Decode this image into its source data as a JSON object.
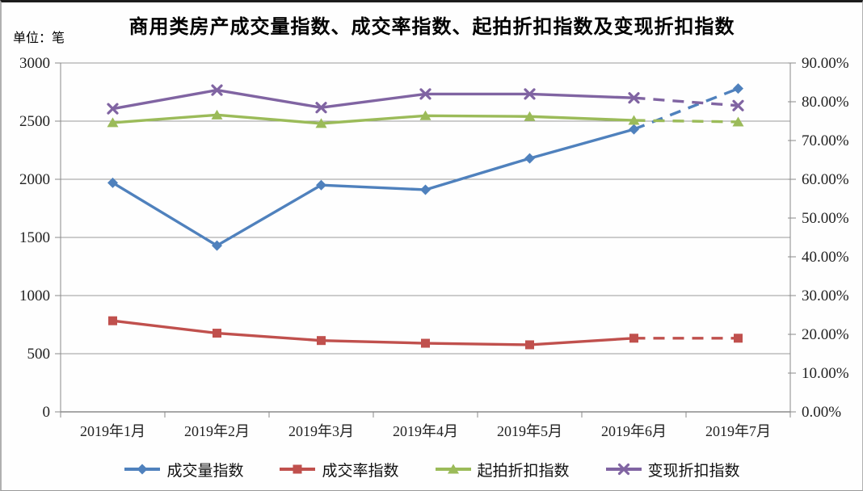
{
  "chart_data": {
    "type": "line",
    "title": "商用类房产成交量指数、成交率指数、起拍折扣指数及变现折扣指数",
    "unit_label": "单位：笔",
    "categories": [
      "2019年1月",
      "2019年2月",
      "2019年3月",
      "2019年4月",
      "2019年5月",
      "2019年6月",
      "2019年7月"
    ],
    "grid": "horizontal",
    "legend_position": "bottom",
    "left_axis": {
      "min": 0,
      "max": 3000,
      "tick_step": 500,
      "tick_labels": [
        "3000",
        "2500",
        "2000",
        "1500",
        "1000",
        "500",
        "0"
      ]
    },
    "right_axis": {
      "min": 0,
      "max": 90,
      "tick_step": 10,
      "tick_labels": [
        "90.00%",
        "80.00%",
        "70.00%",
        "60.00%",
        "50.00%",
        "40.00%",
        "30.00%",
        "20.00%",
        "10.00%",
        "0.00%"
      ]
    },
    "series": [
      {
        "name": "成交量指数",
        "axis": "left",
        "marker": "diamond",
        "color": "#4F81BD",
        "values": [
          1970,
          1430,
          1950,
          1910,
          2180,
          2430,
          2780
        ],
        "last_segment_dashed": true
      },
      {
        "name": "成交率指数",
        "axis": "right",
        "marker": "square",
        "color": "#C0504D",
        "values": [
          23.5,
          20.3,
          18.4,
          17.7,
          17.3,
          19.0,
          19.0
        ],
        "last_segment_dashed": true
      },
      {
        "name": "起拍折扣指数",
        "axis": "right",
        "marker": "triangle",
        "color": "#9BBB59",
        "values": [
          74.6,
          76.6,
          74.4,
          76.4,
          76.2,
          75.2,
          74.8
        ],
        "last_segment_dashed": true
      },
      {
        "name": "变现折扣指数",
        "axis": "right",
        "marker": "x",
        "color": "#8064A2",
        "values": [
          78.2,
          83.0,
          78.5,
          82.0,
          82.0,
          81.0,
          79.0
        ],
        "last_segment_dashed": true
      }
    ]
  }
}
